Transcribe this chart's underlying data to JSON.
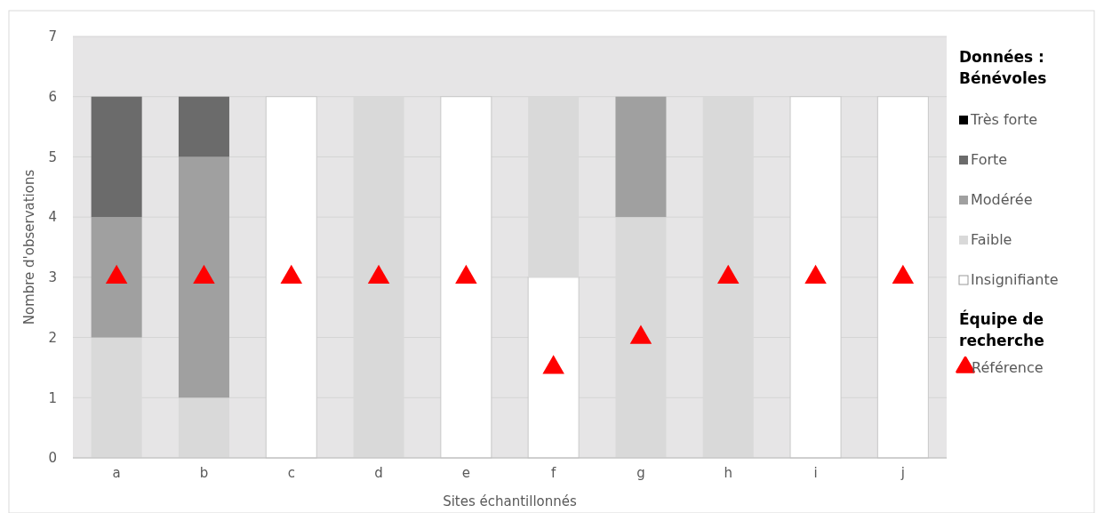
{
  "chart_data": {
    "type": "bar",
    "stacked": true,
    "xlabel": "Sites échantillonnés",
    "ylabel": "Nombre d'observations",
    "legend_title": "Données : Bénévoles",
    "annotations": [
      "Équipe de recherche"
    ],
    "categories": [
      "a",
      "b",
      "c",
      "d",
      "e",
      "f",
      "g",
      "h",
      "i",
      "j"
    ],
    "ylim": [
      0,
      7
    ],
    "yticks": [
      0,
      1,
      2,
      3,
      4,
      5,
      6,
      7
    ],
    "grid": "y",
    "legend": "right",
    "series": [
      {
        "name": "Insignifiante",
        "color": "#ffffff",
        "values": [
          0,
          0,
          6,
          0,
          6,
          3,
          0,
          0,
          6,
          6
        ]
      },
      {
        "name": "Faible",
        "color": "#d9d9d9",
        "values": [
          2,
          1,
          0,
          6,
          0,
          3,
          4,
          6,
          0,
          0
        ]
      },
      {
        "name": "Modérée",
        "color": "#a0a0a0",
        "values": [
          2,
          4,
          0,
          0,
          0,
          0,
          2,
          0,
          0,
          0
        ]
      },
      {
        "name": "Forte",
        "color": "#6b6b6b",
        "values": [
          2,
          1,
          0,
          0,
          0,
          0,
          0,
          0,
          0,
          0
        ]
      },
      {
        "name": "Très forte",
        "color": "#000000",
        "values": [
          0,
          0,
          0,
          0,
          0,
          0,
          0,
          0,
          0,
          0
        ]
      },
      {
        "name": "Référence",
        "type": "scatter",
        "marker": "triangle",
        "color": "#ff0000",
        "values": [
          3,
          3,
          3,
          3,
          3,
          1.5,
          2,
          3,
          3,
          3
        ]
      }
    ]
  }
}
